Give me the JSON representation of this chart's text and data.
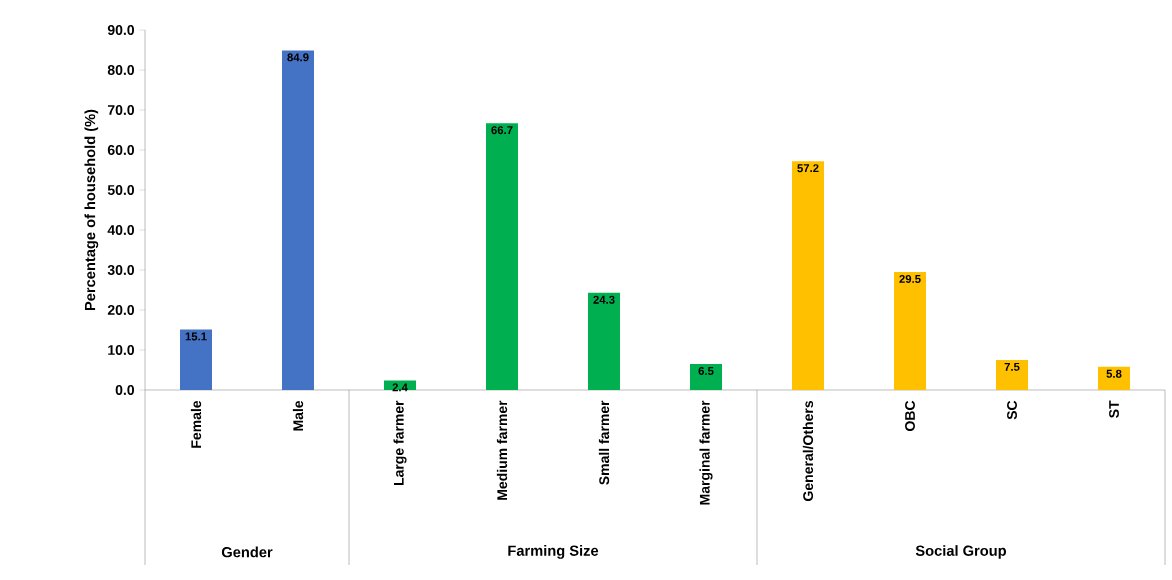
{
  "chart_data": {
    "type": "bar",
    "ylabel": "Percentage of household  (%)",
    "categories": [
      "Female",
      "Male",
      "Large farmer",
      "Medium farmer",
      "Small farmer",
      "Marginal farmer",
      "General/Others",
      "OBC",
      "SC",
      "ST"
    ],
    "values": [
      15.1,
      84.9,
      2.4,
      66.7,
      24.3,
      6.5,
      57.2,
      29.5,
      7.5,
      5.8
    ],
    "colors": [
      "#4472c4",
      "#4472c4",
      "#00b050",
      "#00b050",
      "#00b050",
      "#00b050",
      "#ffc000",
      "#ffc000",
      "#ffc000",
      "#ffc000"
    ],
    "ylim": [
      0,
      90
    ],
    "yticks": [
      {
        "value": 0,
        "label": "0.0"
      },
      {
        "value": 10,
        "label": "10.0"
      },
      {
        "value": 20,
        "label": "20.0"
      },
      {
        "value": 30,
        "label": "30.0"
      },
      {
        "value": 40,
        "label": "40.0"
      },
      {
        "value": 50,
        "label": "50.0"
      },
      {
        "value": 60,
        "label": "60.0"
      },
      {
        "value": 70,
        "label": "70.0"
      },
      {
        "value": 80,
        "label": "80.0"
      },
      {
        "value": 90,
        "label": "90.0"
      }
    ],
    "data_labels": true,
    "annotations": [
      "Gender",
      "Farming Size",
      "Social Group"
    ]
  }
}
